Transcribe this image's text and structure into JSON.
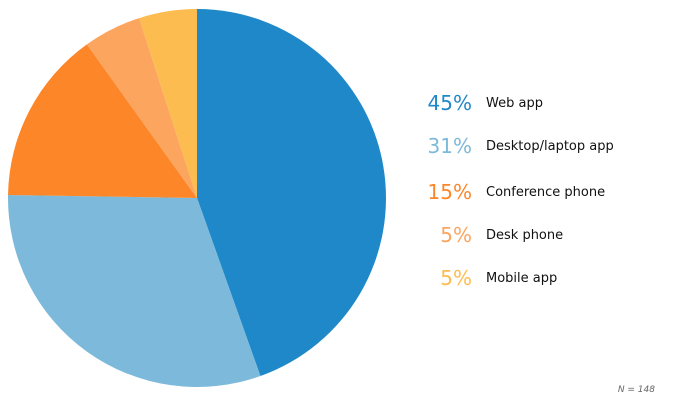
{
  "chart_data": {
    "type": "pie",
    "start_angle": "top, clockwise",
    "slices": [
      {
        "label": "Web app",
        "value": 45,
        "display": "45%",
        "color": "#1f88c9"
      },
      {
        "label": "Desktop/laptop app",
        "value": 31,
        "display": "31%",
        "color": "#7db9da"
      },
      {
        "label": "Conference phone",
        "value": 15,
        "display": "15%",
        "color": "#fd8628"
      },
      {
        "label": "Desk phone",
        "value": 5,
        "display": "5%",
        "color": "#fca55f"
      },
      {
        "label": "Mobile app",
        "value": 5,
        "display": "5%",
        "color": "#fdbc4f"
      }
    ],
    "legend_placement": "right",
    "note": "N = 148"
  }
}
